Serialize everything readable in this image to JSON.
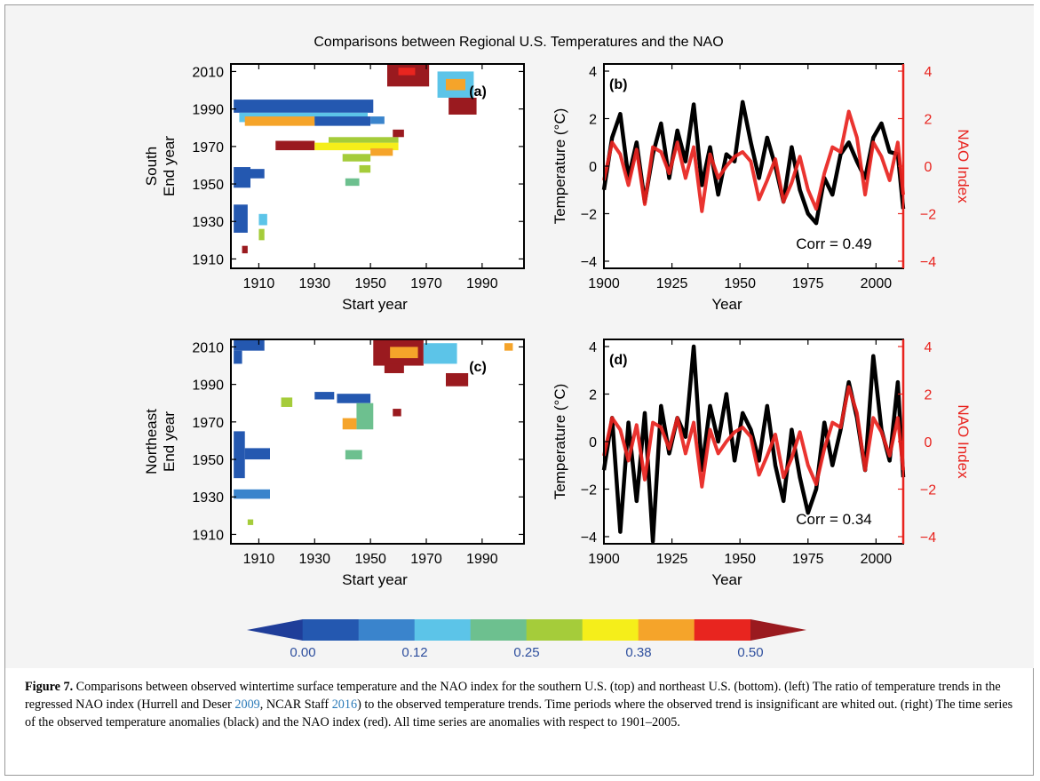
{
  "figure": {
    "title": "Comparisons between Regional U.S. Temperatures and the NAO",
    "colorbar": {
      "colors": [
        "#1f3d99",
        "#2458b0",
        "#3a84cc",
        "#5cc4e8",
        "#6dc08f",
        "#a5cc3a",
        "#f5ee1a",
        "#f5a42a",
        "#e8251f",
        "#9a1a1f"
      ],
      "tick_labels": [
        "0.00",
        "0.12",
        "0.25",
        "0.38",
        "0.50"
      ]
    }
  },
  "chart_data": [
    {
      "type": "heatmap",
      "panel_label": "(a)",
      "region": "South",
      "xlabel": "Start year",
      "ylabel": "End year",
      "xticks": [
        "1910",
        "1930",
        "1950",
        "1970",
        "1990"
      ],
      "yticks": [
        "1910",
        "1930",
        "1950",
        "1970",
        "1990",
        "2010"
      ],
      "xlim": [
        1900,
        2005
      ],
      "ylim": [
        1905,
        2014
      ],
      "cells": [
        {
          "x0": 1901,
          "x1": 1951,
          "y0": 1988,
          "y1": 1995,
          "v": 0.02
        },
        {
          "x0": 1903,
          "x1": 1949,
          "y0": 1983,
          "y1": 1988,
          "v": 0.17
        },
        {
          "x0": 1905,
          "x1": 1930,
          "y0": 1981,
          "y1": 1986,
          "v": 0.42
        },
        {
          "x0": 1930,
          "x1": 1950,
          "y0": 1981,
          "y1": 1986,
          "v": 0.05
        },
        {
          "x0": 1950,
          "x1": 1955,
          "y0": 1982,
          "y1": 1986,
          "v": 0.09
        },
        {
          "x0": 1916,
          "x1": 1930,
          "y0": 1968,
          "y1": 1973,
          "v": 0.52
        },
        {
          "x0": 1930,
          "x1": 1960,
          "y0": 1968,
          "y1": 1972,
          "v": 0.35
        },
        {
          "x0": 1935,
          "x1": 1960,
          "y0": 1972,
          "y1": 1975,
          "v": 0.3
        },
        {
          "x0": 1950,
          "x1": 1958,
          "y0": 1965,
          "y1": 1969,
          "v": 0.4
        },
        {
          "x0": 1940,
          "x1": 1950,
          "y0": 1962,
          "y1": 1966,
          "v": 0.28
        },
        {
          "x0": 1946,
          "x1": 1950,
          "y0": 1956,
          "y1": 1960,
          "v": 0.3
        },
        {
          "x0": 1941,
          "x1": 1946,
          "y0": 1949,
          "y1": 1953,
          "v": 0.24
        },
        {
          "x0": 1901,
          "x1": 1907,
          "y0": 1948,
          "y1": 1959,
          "v": 0.02
        },
        {
          "x0": 1907,
          "x1": 1912,
          "y0": 1953,
          "y1": 1958,
          "v": 0.03
        },
        {
          "x0": 1901,
          "x1": 1906,
          "y0": 1924,
          "y1": 1939,
          "v": 0.04
        },
        {
          "x0": 1910,
          "x1": 1913,
          "y0": 1928,
          "y1": 1934,
          "v": 0.18
        },
        {
          "x0": 1910,
          "x1": 1912,
          "y0": 1920,
          "y1": 1926,
          "v": 0.27
        },
        {
          "x0": 1904,
          "x1": 1906,
          "y0": 1913,
          "y1": 1917,
          "v": 0.5
        },
        {
          "x0": 1956,
          "x1": 1971,
          "y0": 2002,
          "y1": 2014,
          "v": 0.58
        },
        {
          "x0": 1960,
          "x1": 1966,
          "y0": 2008,
          "y1": 2012,
          "v": 0.47
        },
        {
          "x0": 1958,
          "x1": 1962,
          "y0": 1975,
          "y1": 1979,
          "v": 0.52
        },
        {
          "x0": 1974,
          "x1": 1987,
          "y0": 1996,
          "y1": 2010,
          "v": 0.18
        },
        {
          "x0": 1977,
          "x1": 1984,
          "y0": 2000,
          "y1": 2006,
          "v": 0.4
        },
        {
          "x0": 1978,
          "x1": 1988,
          "y0": 1987,
          "y1": 1996,
          "v": 0.57
        }
      ]
    },
    {
      "type": "line",
      "panel_label": "(b)",
      "xlabel": "Year",
      "ylabel": "Temperature (°C)",
      "y2label": "NAO Index",
      "xticks": [
        "1900",
        "1925",
        "1950",
        "1975",
        "2000"
      ],
      "yticks": [
        "−4",
        "−2",
        "0",
        "2",
        "4"
      ],
      "y2ticks": [
        "−4",
        "−2",
        "0",
        "2",
        "4"
      ],
      "xlim": [
        1900,
        2010
      ],
      "ylim": [
        -4.3,
        4.3
      ],
      "annotation": "Corr = 0.49",
      "x": [
        1900,
        1903,
        1906,
        1909,
        1912,
        1915,
        1918,
        1921,
        1924,
        1927,
        1930,
        1933,
        1936,
        1939,
        1942,
        1945,
        1948,
        1951,
        1954,
        1957,
        1960,
        1963,
        1966,
        1969,
        1972,
        1975,
        1978,
        1981,
        1984,
        1987,
        1990,
        1993,
        1996,
        1999,
        2002,
        2005,
        2008,
        2010
      ],
      "series": [
        {
          "color": "#000000",
          "values": [
            -1.0,
            1.2,
            2.2,
            -0.5,
            1.0,
            -1.5,
            0.5,
            1.8,
            -0.5,
            1.5,
            0.2,
            2.6,
            -0.8,
            0.8,
            -1.2,
            0.5,
            0.2,
            2.7,
            1.0,
            -0.5,
            1.2,
            0.0,
            -1.5,
            0.8,
            -1.0,
            -2.0,
            -2.4,
            -0.5,
            -1.2,
            0.5,
            1.0,
            0.2,
            -0.5,
            1.2,
            1.8,
            0.6,
            0.5,
            -1.8
          ]
        },
        {
          "color": "#e8231e",
          "values": [
            -0.6,
            1.0,
            0.5,
            -0.8,
            0.7,
            -1.6,
            0.8,
            0.6,
            -0.3,
            1.0,
            -0.5,
            0.8,
            -1.9,
            0.5,
            -0.5,
            0.0,
            0.4,
            0.6,
            0.2,
            -1.4,
            -0.6,
            0.3,
            -1.5,
            -0.7,
            0.4,
            -1.0,
            -1.8,
            -0.3,
            0.8,
            0.6,
            2.3,
            1.2,
            -1.2,
            1.0,
            0.4,
            -0.6,
            1.0,
            -1.2
          ]
        }
      ]
    },
    {
      "type": "heatmap",
      "panel_label": "(c)",
      "region": "Northeast",
      "xlabel": "Start year",
      "ylabel": "End year",
      "xticks": [
        "1910",
        "1930",
        "1950",
        "1970",
        "1990"
      ],
      "yticks": [
        "1910",
        "1930",
        "1950",
        "1970",
        "1990",
        "2010"
      ],
      "xlim": [
        1900,
        2005
      ],
      "ylim": [
        1905,
        2014
      ],
      "cells": [
        {
          "x0": 1901,
          "x1": 1912,
          "y0": 2008,
          "y1": 2014,
          "v": 0.05
        },
        {
          "x0": 1901,
          "x1": 1904,
          "y0": 2001,
          "y1": 2008,
          "v": 0.05
        },
        {
          "x0": 1951,
          "x1": 1969,
          "y0": 2000,
          "y1": 2014,
          "v": 0.55
        },
        {
          "x0": 1957,
          "x1": 1967,
          "y0": 2004,
          "y1": 2010,
          "v": 0.42
        },
        {
          "x0": 1969,
          "x1": 1981,
          "y0": 2001,
          "y1": 2012,
          "v": 0.17
        },
        {
          "x0": 1955,
          "x1": 1962,
          "y0": 1996,
          "y1": 2001,
          "v": 0.54
        },
        {
          "x0": 1977,
          "x1": 1985,
          "y0": 1989,
          "y1": 1996,
          "v": 0.55
        },
        {
          "x0": 1998,
          "x1": 2001,
          "y0": 2008,
          "y1": 2012,
          "v": 0.42
        },
        {
          "x0": 1918,
          "x1": 1922,
          "y0": 1978,
          "y1": 1983,
          "v": 0.26
        },
        {
          "x0": 1930,
          "x1": 1937,
          "y0": 1982,
          "y1": 1986,
          "v": 0.04
        },
        {
          "x0": 1938,
          "x1": 1950,
          "y0": 1980,
          "y1": 1985,
          "v": 0.05
        },
        {
          "x0": 1945,
          "x1": 1951,
          "y0": 1966,
          "y1": 1980,
          "v": 0.22
        },
        {
          "x0": 1940,
          "x1": 1945,
          "y0": 1966,
          "y1": 1972,
          "v": 0.43
        },
        {
          "x0": 1958,
          "x1": 1961,
          "y0": 1973,
          "y1": 1977,
          "v": 0.55
        },
        {
          "x0": 1941,
          "x1": 1947,
          "y0": 1950,
          "y1": 1955,
          "v": 0.2
        },
        {
          "x0": 1901,
          "x1": 1905,
          "y0": 1940,
          "y1": 1965,
          "v": 0.02
        },
        {
          "x0": 1905,
          "x1": 1914,
          "y0": 1950,
          "y1": 1956,
          "v": 0.03
        },
        {
          "x0": 1901,
          "x1": 1914,
          "y0": 1929,
          "y1": 1934,
          "v": 0.12
        },
        {
          "x0": 1906,
          "x1": 1908,
          "y0": 1915,
          "y1": 1918,
          "v": 0.28
        }
      ]
    },
    {
      "type": "line",
      "panel_label": "(d)",
      "xlabel": "Year",
      "ylabel": "Temperature (°C)",
      "y2label": "NAO Index",
      "xticks": [
        "1900",
        "1925",
        "1950",
        "1975",
        "2000"
      ],
      "yticks": [
        "−4",
        "−2",
        "0",
        "2",
        "4"
      ],
      "y2ticks": [
        "−4",
        "−2",
        "0",
        "2",
        "4"
      ],
      "xlim": [
        1900,
        2010
      ],
      "ylim": [
        -4.3,
        4.3
      ],
      "annotation": "Corr = 0.34",
      "x": [
        1900,
        1903,
        1906,
        1909,
        1912,
        1915,
        1918,
        1921,
        1924,
        1927,
        1930,
        1933,
        1936,
        1939,
        1942,
        1945,
        1948,
        1951,
        1954,
        1957,
        1960,
        1963,
        1966,
        1969,
        1972,
        1975,
        1978,
        1981,
        1984,
        1987,
        1990,
        1993,
        1996,
        1999,
        2002,
        2005,
        2008,
        2010
      ],
      "series": [
        {
          "color": "#000000",
          "values": [
            -1.2,
            1.0,
            -3.8,
            0.8,
            -2.5,
            1.2,
            -4.2,
            1.5,
            -0.5,
            1.0,
            0.2,
            4.0,
            -1.2,
            1.5,
            0.0,
            2.0,
            -0.8,
            1.2,
            0.5,
            -0.8,
            1.5,
            -1.0,
            -2.5,
            0.5,
            -1.5,
            -3.0,
            -2.0,
            0.8,
            -1.0,
            0.5,
            2.5,
            1.0,
            -1.2,
            3.6,
            0.5,
            -0.8,
            2.5,
            -1.5
          ]
        },
        {
          "color": "#e8231e",
          "values": [
            -0.6,
            1.0,
            0.5,
            -0.8,
            0.7,
            -1.6,
            0.8,
            0.6,
            -0.3,
            1.0,
            -0.5,
            0.8,
            -1.9,
            0.5,
            -0.5,
            0.0,
            0.4,
            0.6,
            0.2,
            -1.4,
            -0.6,
            0.3,
            -1.5,
            -0.7,
            0.4,
            -1.0,
            -1.8,
            -0.3,
            0.8,
            0.6,
            2.3,
            1.2,
            -1.2,
            1.0,
            0.4,
            -0.6,
            1.0,
            -1.2
          ]
        }
      ]
    }
  ],
  "caption": {
    "label": "Figure 7.",
    "text_1": " Comparisons between observed wintertime surface temperature and the NAO index for the southern U.S. (top) and northeast U.S. (bottom). (left) The ratio of temperature trends in the regressed NAO index (Hurrell and Deser ",
    "cite_1": "2009",
    "text_2": ", NCAR Staff ",
    "cite_2": "2016",
    "text_3": ") to the observed temperature trends. Time periods where the observed trend is insignificant are whited out. (right) The time series of the observed temperature anomalies (black) and the NAO index (red). All time series are anomalies with respect to 1901–2005."
  }
}
